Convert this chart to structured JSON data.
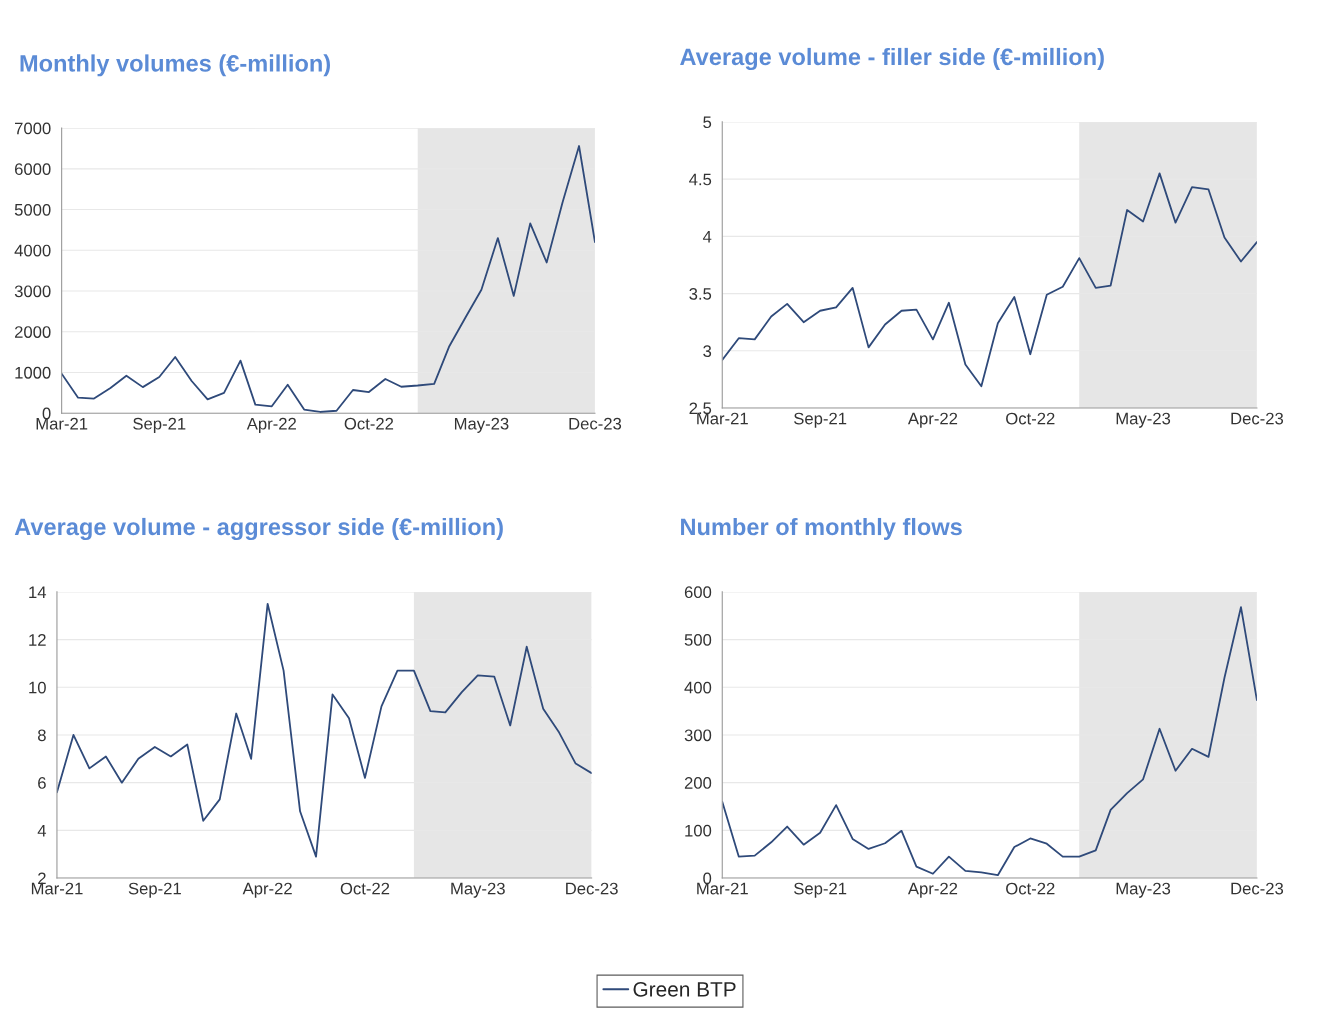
{
  "chart_data": [
    {
      "type": "line",
      "title": "Monthly volumes (€-million)",
      "x": [
        "2021-03",
        "2021-04",
        "2021-05",
        "2021-06",
        "2021-07",
        "2021-08",
        "2021-09",
        "2021-10",
        "2021-11",
        "2021-12",
        "2022-01",
        "2022-02",
        "2022-03",
        "2022-04",
        "2022-05",
        "2022-06",
        "2022-07",
        "2022-08",
        "2022-09",
        "2022-10",
        "2022-11",
        "2022-12",
        "2023-01",
        "2023-02",
        "2023-03",
        "2023-04",
        "2023-05",
        "2023-06",
        "2023-07",
        "2023-08",
        "2023-09",
        "2023-10",
        "2023-11",
        "2023-12"
      ],
      "series": [
        {
          "color": "#2f4a7a",
          "values": [
            970,
            380,
            360,
            620,
            920,
            640,
            890,
            1380,
            790,
            340,
            500,
            1290,
            210,
            170,
            700,
            90,
            30,
            60,
            570,
            520,
            840,
            650,
            680,
            720,
            1630,
            2350,
            3030,
            4300,
            2880,
            4660,
            3700,
            5180,
            6560,
            4200
          ]
        }
      ],
      "xlim": [
        "2021-03",
        "2023-12"
      ],
      "xticks": [
        {
          "value": "2021-03",
          "label": "Mar-21"
        },
        {
          "value": "2021-09",
          "label": "Sep-21"
        },
        {
          "value": "2022-04",
          "label": "Apr-22"
        },
        {
          "value": "2022-10",
          "label": "Oct-22"
        },
        {
          "value": "2023-05",
          "label": "May-23"
        },
        {
          "value": "2023-12",
          "label": "Dec-23"
        }
      ],
      "ylim": [
        0,
        7000
      ],
      "yticks": [
        0,
        1000,
        2000,
        3000,
        4000,
        5000,
        6000,
        7000
      ],
      "grid": "y",
      "legend": false,
      "bands": [
        {
          "axis": "x",
          "from": "2023-01",
          "to": "2023-12",
          "color": "#e6e6e6"
        }
      ]
    },
    {
      "type": "line",
      "title": "Average volume - filler side (€-million)",
      "x": [
        "2021-03",
        "2021-04",
        "2021-05",
        "2021-06",
        "2021-07",
        "2021-08",
        "2021-09",
        "2021-10",
        "2021-11",
        "2021-12",
        "2022-01",
        "2022-02",
        "2022-03",
        "2022-04",
        "2022-05",
        "2022-06",
        "2022-07",
        "2022-08",
        "2022-09",
        "2022-10",
        "2022-11",
        "2022-12",
        "2023-01",
        "2023-02",
        "2023-03",
        "2023-04",
        "2023-05",
        "2023-06",
        "2023-07",
        "2023-08",
        "2023-09",
        "2023-10",
        "2023-11",
        "2023-12"
      ],
      "series": [
        {
          "color": "#2f4a7a",
          "values": [
            2.92,
            3.11,
            3.1,
            3.3,
            3.41,
            3.25,
            3.35,
            3.38,
            3.55,
            3.03,
            3.23,
            3.35,
            3.36,
            3.1,
            3.42,
            2.88,
            2.69,
            3.24,
            3.47,
            2.97,
            3.49,
            3.56,
            3.81,
            3.55,
            3.57,
            4.23,
            4.13,
            4.55,
            4.12,
            4.43,
            4.41,
            3.99,
            3.78,
            3.95
          ]
        }
      ],
      "xlim": [
        "2021-03",
        "2023-12"
      ],
      "xticks": [
        {
          "value": "2021-03",
          "label": "Mar-21"
        },
        {
          "value": "2021-09",
          "label": "Sep-21"
        },
        {
          "value": "2022-04",
          "label": "Apr-22"
        },
        {
          "value": "2022-10",
          "label": "Oct-22"
        },
        {
          "value": "2023-05",
          "label": "May-23"
        },
        {
          "value": "2023-12",
          "label": "Dec-23"
        }
      ],
      "ylim": [
        2.5,
        5
      ],
      "yticks": [
        2.5,
        3,
        3.5,
        4,
        4.5,
        5
      ],
      "grid": "y",
      "legend": false,
      "bands": [
        {
          "axis": "x",
          "from": "2023-01",
          "to": "2023-12",
          "color": "#e6e6e6"
        }
      ]
    },
    {
      "type": "line",
      "title": "Average volume - aggressor side (€-million)",
      "x": [
        "2021-03",
        "2021-04",
        "2021-05",
        "2021-06",
        "2021-07",
        "2021-08",
        "2021-09",
        "2021-10",
        "2021-11",
        "2021-12",
        "2022-01",
        "2022-02",
        "2022-03",
        "2022-04",
        "2022-05",
        "2022-06",
        "2022-07",
        "2022-08",
        "2022-09",
        "2022-10",
        "2022-11",
        "2022-12",
        "2023-01",
        "2023-02",
        "2023-03",
        "2023-04",
        "2023-05",
        "2023-06",
        "2023-07",
        "2023-08",
        "2023-09",
        "2023-10",
        "2023-11",
        "2023-12"
      ],
      "series": [
        {
          "color": "#2f4a7a",
          "values": [
            5.6,
            8.0,
            6.6,
            7.1,
            6.0,
            7.0,
            7.5,
            7.1,
            7.6,
            4.4,
            5.3,
            8.9,
            7.0,
            13.5,
            10.7,
            4.8,
            2.9,
            9.7,
            8.7,
            6.2,
            9.2,
            10.7,
            10.7,
            9.0,
            8.95,
            9.8,
            10.5,
            10.45,
            8.4,
            11.7,
            9.1,
            8.1,
            6.8,
            6.4
          ]
        }
      ],
      "xlim": [
        "2021-03",
        "2023-12"
      ],
      "xticks": [
        {
          "value": "2021-03",
          "label": "Mar-21"
        },
        {
          "value": "2021-09",
          "label": "Sep-21"
        },
        {
          "value": "2022-04",
          "label": "Apr-22"
        },
        {
          "value": "2022-10",
          "label": "Oct-22"
        },
        {
          "value": "2023-05",
          "label": "May-23"
        },
        {
          "value": "2023-12",
          "label": "Dec-23"
        }
      ],
      "ylim": [
        2,
        14
      ],
      "yticks": [
        2,
        4,
        6,
        8,
        10,
        12,
        14
      ],
      "grid": "y",
      "legend": false,
      "bands": [
        {
          "axis": "x",
          "from": "2023-01",
          "to": "2023-12",
          "color": "#e6e6e6"
        }
      ]
    },
    {
      "type": "line",
      "title": "Number of monthly flows",
      "x": [
        "2021-03",
        "2021-04",
        "2021-05",
        "2021-06",
        "2021-07",
        "2021-08",
        "2021-09",
        "2021-10",
        "2021-11",
        "2021-12",
        "2022-01",
        "2022-02",
        "2022-03",
        "2022-04",
        "2022-05",
        "2022-06",
        "2022-07",
        "2022-08",
        "2022-09",
        "2022-10",
        "2022-11",
        "2022-12",
        "2023-01",
        "2023-02",
        "2023-03",
        "2023-04",
        "2023-05",
        "2023-06",
        "2023-07",
        "2023-08",
        "2023-09",
        "2023-10",
        "2023-11",
        "2023-12"
      ],
      "series": [
        {
          "name": "Green BTP",
          "color": "#2f4a7a",
          "values": [
            160,
            45,
            47,
            75,
            108,
            70,
            95,
            153,
            82,
            61,
            73,
            99,
            24,
            9,
            45,
            15,
            12,
            6,
            65,
            83,
            72,
            45,
            45,
            58,
            143,
            178,
            207,
            313,
            225,
            271,
            254,
            420,
            568,
            373
          ]
        }
      ],
      "xlim": [
        "2021-03",
        "2023-12"
      ],
      "xticks": [
        {
          "value": "2021-03",
          "label": "Mar-21"
        },
        {
          "value": "2021-09",
          "label": "Sep-21"
        },
        {
          "value": "2022-04",
          "label": "Apr-22"
        },
        {
          "value": "2022-10",
          "label": "Oct-22"
        },
        {
          "value": "2023-05",
          "label": "May-23"
        },
        {
          "value": "2023-12",
          "label": "Dec-23"
        }
      ],
      "ylim": [
        0,
        600
      ],
      "yticks": [
        0,
        100,
        200,
        300,
        400,
        500,
        600
      ],
      "grid": "y",
      "legend": "bottom",
      "bands": [
        {
          "axis": "x",
          "from": "2023-01",
          "to": "2023-12",
          "color": "#e6e6e6"
        }
      ]
    }
  ]
}
